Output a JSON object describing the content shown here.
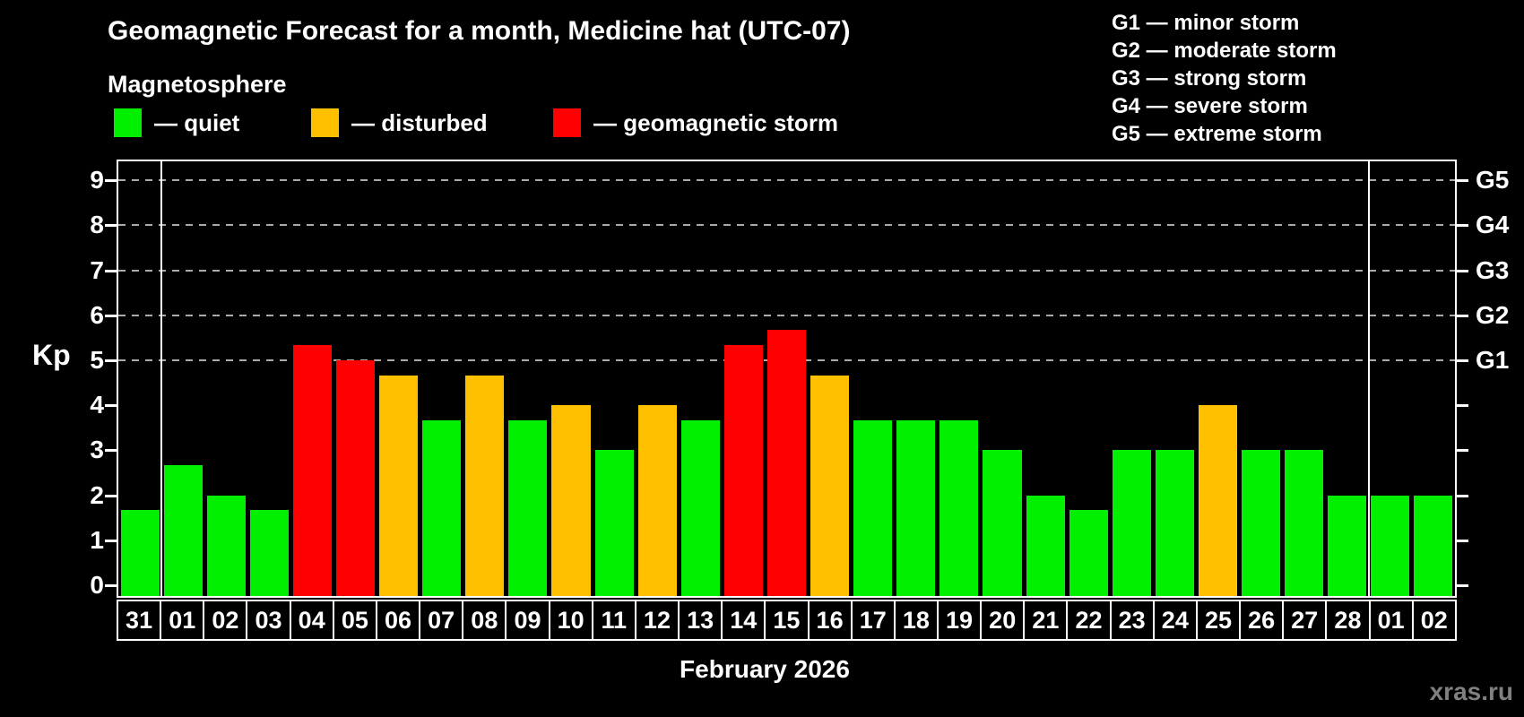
{
  "header": {
    "title": "Geomagnetic Forecast for a month, Medicine hat (UTC-07)",
    "subtitle": "Magnetosphere"
  },
  "legend": {
    "items": [
      {
        "label": "— quiet",
        "status": "quiet",
        "color": "#00f000"
      },
      {
        "label": "— disturbed",
        "status": "disturbed",
        "color": "#ffc000"
      },
      {
        "label": "— geomagnetic storm",
        "status": "storm",
        "color": "#ff0000"
      }
    ]
  },
  "g_legend": {
    "lines": [
      "G1 — minor storm",
      "G2 — moderate storm",
      "G3 — strong storm",
      "G4 — severe storm",
      "G5 — extreme storm"
    ]
  },
  "axes": {
    "kp_label": "Kp",
    "y_ticks": [
      0,
      1,
      2,
      3,
      4,
      5,
      6,
      7,
      8,
      9
    ],
    "right_labels": [
      {
        "label": "G1",
        "kp": 5
      },
      {
        "label": "G2",
        "kp": 6
      },
      {
        "label": "G3",
        "kp": 7
      },
      {
        "label": "G4",
        "kp": 8
      },
      {
        "label": "G5",
        "kp": 9
      }
    ]
  },
  "x_axis": {
    "month_title": "February 2026"
  },
  "watermark": "xras.ru",
  "palette": {
    "quiet": "#00f000",
    "disturbed": "#ffc000",
    "storm": "#ff0000",
    "grid": "#aaaaaa",
    "axis": "#ffffff",
    "watermark": "#808080"
  },
  "chart_data": {
    "type": "bar",
    "title": "Geomagnetic Forecast for a month, Medicine hat (UTC-07)",
    "subtitle": "Magnetosphere",
    "xlabel": "February 2026",
    "ylabel": "Kp",
    "ylim": [
      0,
      9.5
    ],
    "gridlines_at": [
      5,
      6,
      7,
      8,
      9
    ],
    "grid": "dashed horizontal lines only at storm levels G1-G5",
    "legend_position": "top-left",
    "categories": [
      "31",
      "01",
      "02",
      "03",
      "04",
      "05",
      "06",
      "07",
      "08",
      "09",
      "10",
      "11",
      "12",
      "13",
      "14",
      "15",
      "16",
      "17",
      "18",
      "19",
      "20",
      "21",
      "22",
      "23",
      "24",
      "25",
      "26",
      "27",
      "28",
      "01",
      "02"
    ],
    "values": [
      1.67,
      2.67,
      2,
      1.67,
      5.33,
      5,
      4.67,
      3.67,
      4.67,
      3.67,
      4,
      3,
      4,
      3.67,
      5.33,
      5.67,
      4.67,
      3.67,
      3.67,
      3.67,
      3,
      2,
      1.67,
      3,
      3,
      4,
      3,
      3,
      2,
      2,
      2
    ],
    "statuses": [
      "quiet",
      "quiet",
      "quiet",
      "quiet",
      "storm",
      "storm",
      "disturbed",
      "quiet",
      "disturbed",
      "quiet",
      "disturbed",
      "quiet",
      "disturbed",
      "quiet",
      "storm",
      "storm",
      "disturbed",
      "quiet",
      "quiet",
      "quiet",
      "quiet",
      "quiet",
      "quiet",
      "quiet",
      "quiet",
      "disturbed",
      "quiet",
      "quiet",
      "quiet",
      "quiet",
      "quiet"
    ],
    "month_separators_after_index": [
      0,
      28
    ],
    "kp_to_g": {
      "5": "G1",
      "6": "G2",
      "7": "G3",
      "8": "G4",
      "9": "G5"
    }
  }
}
